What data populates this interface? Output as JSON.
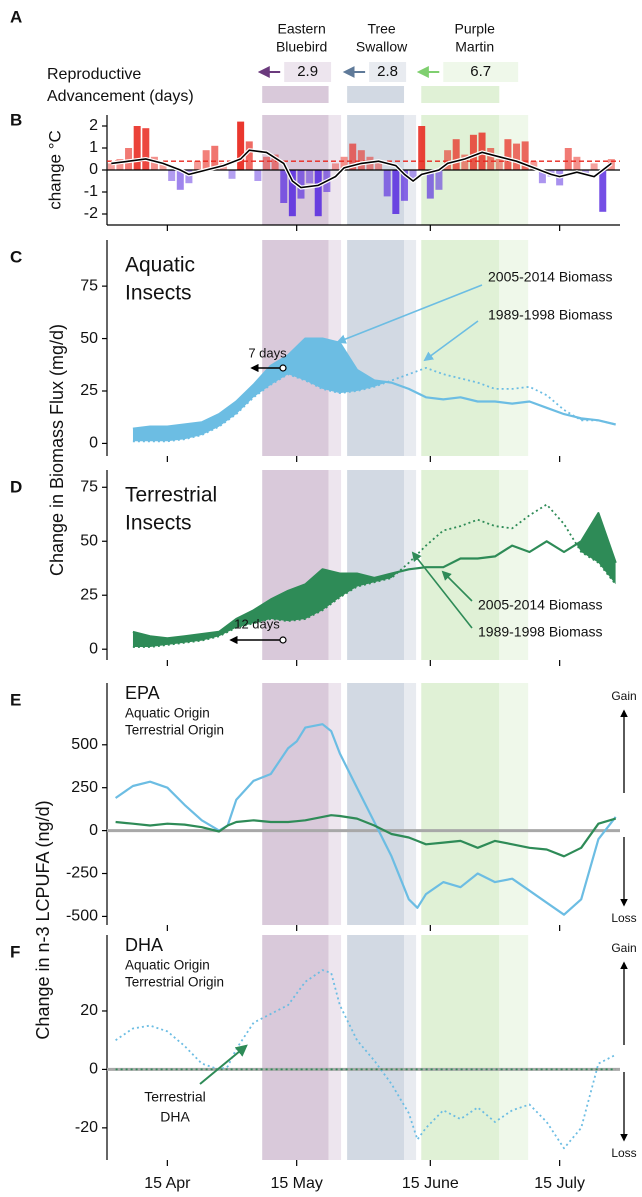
{
  "shared": {
    "xlim": [
      0,
      119
    ],
    "xticks": [
      {
        "value": 14,
        "label": "15 Apr"
      },
      {
        "value": 44,
        "label": "15 May"
      },
      {
        "value": 75,
        "label": "15 June"
      },
      {
        "value": 105,
        "label": "15 July"
      }
    ],
    "panel": "A",
    "advancement_label": [
      "Reproductive",
      "Advancement (days)"
    ],
    "nesting": [
      {
        "name": [
          "Eastern",
          "Bluebird"
        ],
        "advancement": 2.9,
        "start": 36,
        "end": 54.3,
        "color": "#6b3a7d",
        "band_color": "#d9c9da",
        "light_color": "#ede5ee"
      },
      {
        "name": [
          "Tree",
          "Swallow"
        ],
        "advancement": 2.8,
        "start": 55.7,
        "end": 71.7,
        "color": "#5f7a99",
        "band_color": "#d2d9e3",
        "light_color": "#e8ebf0"
      },
      {
        "name": [
          "Purple",
          "Martin"
        ],
        "advancement": 6.7,
        "start": 72.9,
        "end": 97.7,
        "color": "#7fcf6f",
        "band_color": "#e0f1d6",
        "light_color": "#eff8ea"
      }
    ],
    "biomass_ylabel": "Change in Biomass Flux (mg/d)",
    "lcpufa_ylabel": "Change in n-3 LCPUFA (ng/d)"
  },
  "chart_data": [
    {
      "type": "bar",
      "panel": "B",
      "ylabel": "change °C",
      "x": [
        1,
        3,
        5,
        7,
        9,
        11,
        13,
        15,
        17,
        19,
        21,
        23,
        25,
        27,
        29,
        31,
        33,
        35,
        37,
        39,
        41,
        43,
        45,
        47,
        49,
        51,
        53,
        55,
        57,
        59,
        61,
        63,
        65,
        67,
        69,
        71,
        73,
        75,
        77,
        79,
        81,
        83,
        85,
        87,
        89,
        91,
        93,
        95,
        97,
        99,
        101,
        103,
        105,
        107,
        109,
        111,
        113,
        115,
        117
      ],
      "values": [
        0.3,
        0.5,
        1.0,
        2.0,
        1.9,
        0.6,
        0.3,
        -0.5,
        -0.9,
        -0.6,
        0.4,
        0.9,
        1.1,
        0.3,
        -0.4,
        2.2,
        1.3,
        -0.5,
        0.6,
        0.7,
        -1.5,
        -2.1,
        -1.3,
        -0.6,
        -2.1,
        -1.0,
        0.3,
        0.6,
        1.2,
        0.9,
        0.6,
        0.4,
        -1.2,
        -2.0,
        -1.4,
        -0.4,
        2.0,
        -1.3,
        -0.9,
        0.9,
        1.4,
        0.7,
        1.6,
        1.7,
        1.0,
        0.5,
        1.4,
        1.2,
        1.3,
        0.4,
        -0.6,
        -0.3,
        -0.7,
        1.0,
        0.6,
        -0.2,
        0.3,
        -1.9,
        0.5
      ],
      "positive_color": "#e8261c",
      "negative_color": "#5b2ee0",
      "line": {
        "x": [
          1,
          5,
          9,
          13,
          17,
          19,
          23,
          27,
          31,
          33,
          37,
          41,
          43,
          45,
          49,
          53,
          55,
          59,
          63,
          67,
          69,
          71,
          73,
          77,
          79,
          83,
          87,
          91,
          95,
          99,
          103,
          105,
          109,
          113,
          115,
          117
        ],
        "values": [
          0.3,
          0.4,
          0.5,
          0.3,
          0.0,
          -0.2,
          0.0,
          0.2,
          0.5,
          0.9,
          0.8,
          0.3,
          -0.5,
          -0.8,
          -0.7,
          -0.3,
          0.1,
          0.3,
          0.4,
          0.2,
          -0.2,
          -0.5,
          -0.2,
          0.0,
          0.3,
          0.5,
          0.8,
          0.6,
          0.4,
          0.1,
          -0.2,
          -0.3,
          -0.1,
          -0.3,
          0.0,
          0.3
        ],
        "color": "#000000"
      },
      "reference_line": {
        "value": 0.4,
        "color": "#e8261c"
      },
      "ylim": [
        -2.5,
        2.5
      ],
      "yticks": [
        -2,
        -1,
        0,
        1,
        2
      ]
    },
    {
      "type": "line",
      "panel": "C",
      "title": [
        "Aquatic",
        "Insects"
      ],
      "title_color": "#6cbde3",
      "fill_between": true,
      "legend": "arrows",
      "shift_label": "7 days",
      "x": [
        6,
        10,
        14,
        18,
        22,
        26,
        30,
        34,
        38,
        42,
        46,
        50,
        54,
        58,
        62,
        66,
        70,
        74,
        78,
        82,
        86,
        90,
        94,
        98,
        102,
        106,
        110,
        114,
        118
      ],
      "series": [
        {
          "name": "2005-2014 Biomass",
          "color": "#6cbde3",
          "style": "solid",
          "values": [
            7,
            8,
            8,
            9,
            10,
            14,
            20,
            28,
            37,
            42,
            50,
            50,
            48,
            35,
            30,
            29,
            26,
            22,
            21,
            22,
            20,
            20,
            19,
            20,
            17,
            14,
            12,
            11,
            9
          ]
        },
        {
          "name": "1989-1998 Biomass",
          "color": "#6cbde3",
          "style": "dotted",
          "values": [
            1,
            1,
            1,
            2,
            4,
            8,
            14,
            22,
            28,
            33,
            30,
            26,
            24,
            25,
            27,
            30,
            33,
            36,
            33,
            31,
            29,
            26,
            26,
            27,
            23,
            16,
            11,
            11,
            9
          ]
        }
      ],
      "ylim": [
        -6,
        97
      ],
      "yticks": [
        0,
        25,
        50,
        75
      ]
    },
    {
      "type": "line",
      "panel": "D",
      "title": [
        "Terrestrial",
        "Insects"
      ],
      "title_color": "#2e8b57",
      "fill_between": true,
      "legend": "arrows",
      "shift_label": "12 days",
      "x": [
        6,
        10,
        14,
        18,
        22,
        26,
        30,
        34,
        38,
        42,
        46,
        50,
        54,
        58,
        62,
        66,
        70,
        74,
        78,
        82,
        86,
        90,
        94,
        98,
        102,
        106,
        110,
        114,
        118
      ],
      "series": [
        {
          "name": "2005-2014 Biomass",
          "color": "#2e8b57",
          "style": "solid",
          "values": [
            8,
            6,
            5,
            6,
            7,
            8,
            14,
            18,
            23,
            27,
            30,
            37,
            35,
            35,
            33,
            35,
            37,
            38,
            38,
            42,
            42,
            43,
            48,
            45,
            50,
            45,
            50,
            63,
            40
          ]
        },
        {
          "name": "1989-1998 Biomass",
          "color": "#2e8b57",
          "style": "dotted",
          "values": [
            1,
            1,
            2,
            3,
            4,
            6,
            10,
            12,
            14,
            13,
            14,
            18,
            24,
            29,
            31,
            33,
            40,
            48,
            55,
            57,
            60,
            57,
            56,
            62,
            67,
            58,
            45,
            40,
            30
          ]
        }
      ],
      "ylim": [
        -5,
        83
      ],
      "yticks": [
        0,
        25,
        50,
        75
      ]
    },
    {
      "type": "line",
      "panel": "E",
      "title": [
        "EPA"
      ],
      "legend": "list",
      "zero_line": "#a8a8a8",
      "gain_loss": [
        "Gain",
        "Loss"
      ],
      "x": [
        2,
        6,
        10,
        14,
        18,
        22,
        26,
        28,
        30,
        34,
        38,
        42,
        44,
        46,
        50,
        52,
        54,
        58,
        62,
        66,
        70,
        72,
        74,
        78,
        82,
        86,
        90,
        94,
        98,
        102,
        106,
        110,
        114,
        118
      ],
      "series": [
        {
          "name": "Aquatic Origin",
          "color": "#6cbde3",
          "style": "solid",
          "values": [
            190,
            260,
            285,
            250,
            150,
            60,
            0,
            30,
            180,
            290,
            330,
            480,
            520,
            600,
            620,
            580,
            450,
            250,
            50,
            -150,
            -400,
            -450,
            -370,
            -300,
            -330,
            -250,
            -300,
            -280,
            -350,
            -420,
            -490,
            -400,
            -50,
            80
          ]
        },
        {
          "name": "Terrestrial Origin",
          "color": "#2e8b57",
          "style": "solid",
          "values": [
            50,
            40,
            30,
            40,
            35,
            20,
            -5,
            30,
            50,
            60,
            50,
            50,
            55,
            60,
            80,
            90,
            85,
            70,
            30,
            -20,
            -40,
            -60,
            -80,
            -70,
            -60,
            -100,
            -60,
            -80,
            -100,
            -110,
            -150,
            -100,
            40,
            70
          ]
        }
      ],
      "ylim": [
        -550,
        860
      ],
      "yticks": [
        -500,
        -250,
        0,
        250,
        500
      ]
    },
    {
      "type": "line",
      "panel": "F",
      "title": [
        "DHA"
      ],
      "legend": "list",
      "zero_line": "#a8a8a8",
      "gain_loss": [
        "Gain",
        "Loss"
      ],
      "note": [
        "Terrestrial",
        "DHA"
      ],
      "x": [
        2,
        6,
        10,
        14,
        18,
        22,
        26,
        28,
        30,
        34,
        38,
        42,
        44,
        46,
        50,
        52,
        54,
        58,
        62,
        66,
        70,
        72,
        74,
        78,
        82,
        86,
        90,
        94,
        98,
        102,
        106,
        110,
        114,
        118
      ],
      "series": [
        {
          "name": "Aquatic Origin",
          "color": "#6cbde3",
          "style": "dotted",
          "values": [
            10,
            14,
            15,
            13,
            8,
            2,
            0,
            1,
            7,
            16,
            19,
            22,
            26,
            30,
            34,
            33,
            22,
            10,
            3,
            -5,
            -15,
            -24,
            -20,
            -14,
            -17,
            -13,
            -18,
            -14,
            -12,
            -18,
            -27,
            -20,
            2,
            5
          ]
        },
        {
          "name": "Terrestrial Origin",
          "color": "#2e8b57",
          "style": "dotted",
          "values": [
            0,
            0,
            0,
            0,
            0,
            0,
            0,
            0,
            0,
            0,
            0,
            0,
            0,
            0,
            0,
            0,
            0,
            0,
            0,
            0,
            0,
            0,
            0,
            0,
            0,
            0,
            0,
            0,
            0,
            0,
            0,
            0,
            0,
            0
          ]
        }
      ],
      "ylim": [
        -31,
        46
      ],
      "yticks": [
        -20,
        0,
        20
      ]
    }
  ]
}
